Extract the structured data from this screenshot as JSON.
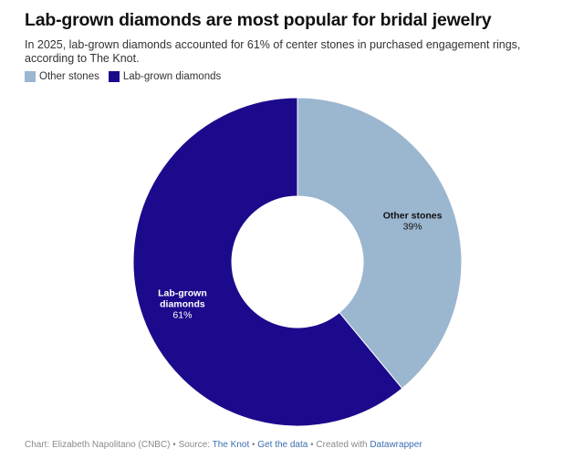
{
  "title": "Lab-grown diamonds are most popular for bridal jewelry",
  "subtitle": "In 2025, lab-grown diamonds accounted for 61% of center stones in purchased engagement rings, according to The Knot.",
  "legend": [
    {
      "label": "Other stones",
      "color": "#9bb6cf"
    },
    {
      "label": "Lab-grown diamonds",
      "color": "#1c0a8c"
    }
  ],
  "chart_data": {
    "type": "pie",
    "donut": true,
    "slices": [
      {
        "label": "Other stones",
        "value": 39,
        "value_label": "39%",
        "color": "#9bb6cf"
      },
      {
        "label": "Lab-grown diamonds",
        "value": 61,
        "value_label": "61%",
        "color": "#1c0a8c"
      }
    ],
    "legend_position": "top-left"
  },
  "footer": {
    "credit": "Chart: Elizabeth Napolitano (CNBC) • Source: ",
    "source_link": "The Knot",
    "sep1": " • ",
    "data_link": "Get the data",
    "sep2": " • Created with ",
    "tool_link": "Datawrapper"
  }
}
